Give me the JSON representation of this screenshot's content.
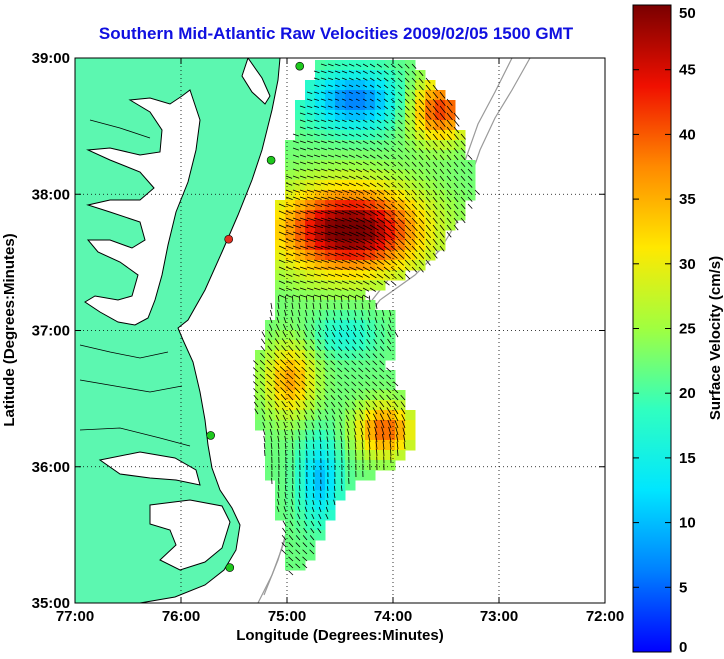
{
  "title": "Southern Mid-Atlantic Raw Velocities 2009/02/05 1500 GMT",
  "colors": {
    "land": "#5cf7b0",
    "coast": "#000000",
    "isobath": "#9a9a9a",
    "ocean": "#ffffff",
    "site_green": "#1ec81e",
    "site_red": "#e03020"
  },
  "map": {
    "xlabel": "Longitude (Degrees:Minutes)",
    "ylabel": "Latitude (Degrees:Minutes)",
    "lon_range": [
      -77,
      -72
    ],
    "lat_range": [
      35,
      39
    ],
    "x_ticks": [
      {
        "value": -77,
        "label": "77:00"
      },
      {
        "value": -76,
        "label": "76:00"
      },
      {
        "value": -75,
        "label": "75:00"
      },
      {
        "value": -74,
        "label": "74:00"
      },
      {
        "value": -73,
        "label": "73:00"
      },
      {
        "value": -72,
        "label": "72:00"
      }
    ],
    "y_ticks": [
      {
        "value": 35,
        "label": "35:00"
      },
      {
        "value": 36,
        "label": "36:00"
      },
      {
        "value": 37,
        "label": "37:00"
      },
      {
        "value": 38,
        "label": "38:00"
      },
      {
        "value": 39,
        "label": "39:00"
      }
    ],
    "grid": "dotted",
    "sites": [
      {
        "lon": -74.88,
        "lat": 38.94,
        "color": "green"
      },
      {
        "lon": -75.15,
        "lat": 38.25,
        "color": "green"
      },
      {
        "lon": -75.55,
        "lat": 37.67,
        "color": "red"
      },
      {
        "lon": -75.72,
        "lat": 36.23,
        "color": "green"
      },
      {
        "lon": -75.54,
        "lat": 35.26,
        "color": "green"
      }
    ]
  },
  "colorbar": {
    "label": "Surface Velocity (cm/s)",
    "min": 0,
    "max": 50,
    "ticks": [
      {
        "value": 0,
        "label": "0"
      },
      {
        "value": 5,
        "label": "5"
      },
      {
        "value": 10,
        "label": "10"
      },
      {
        "value": 15,
        "label": "15"
      },
      {
        "value": 20,
        "label": "20"
      },
      {
        "value": 25,
        "label": "25"
      },
      {
        "value": 30,
        "label": "30"
      },
      {
        "value": 35,
        "label": "35"
      },
      {
        "value": 40,
        "label": "40"
      },
      {
        "value": 45,
        "label": "45"
      },
      {
        "value": 50,
        "label": "50"
      }
    ]
  }
}
